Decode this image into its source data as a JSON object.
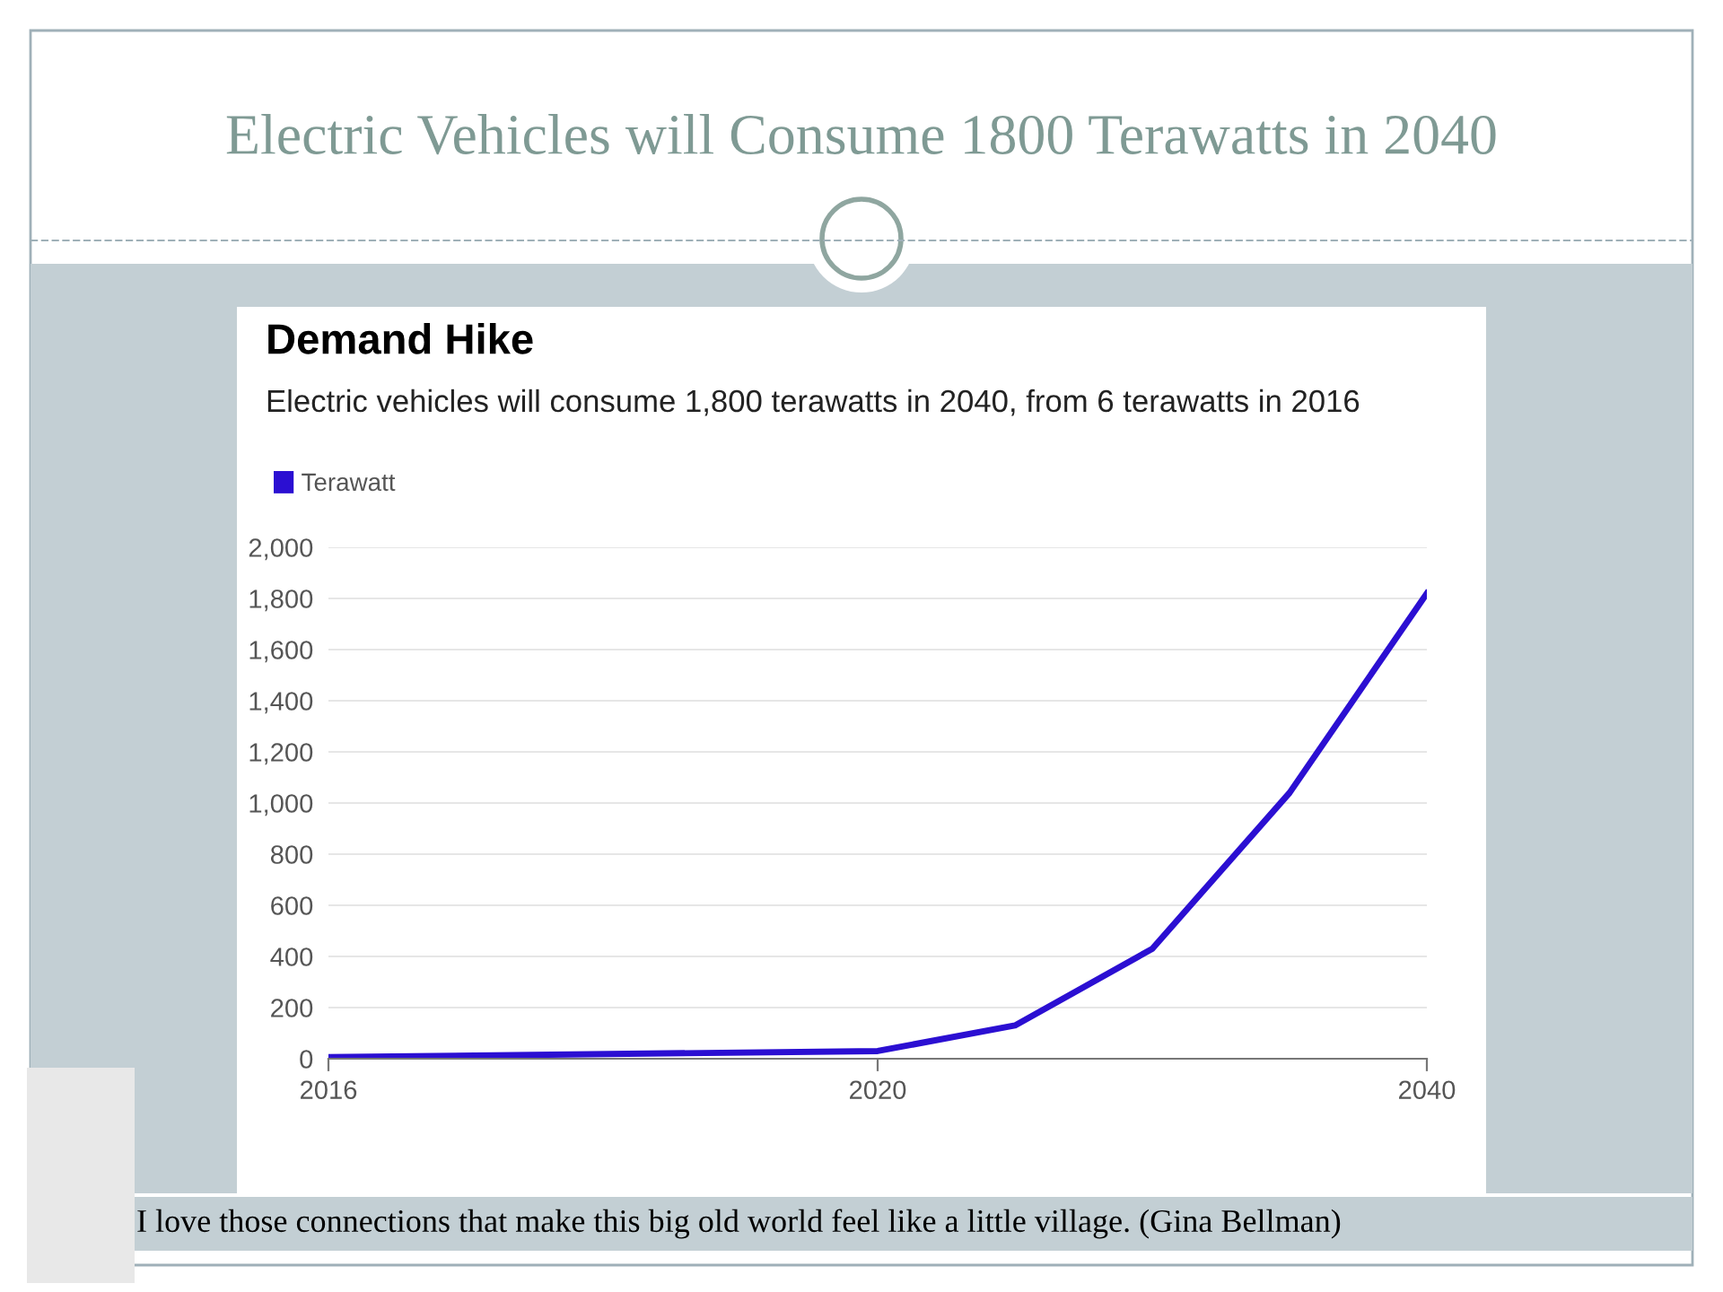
{
  "chart_data": {
    "type": "line",
    "title": "Electric Vehicles will Consume 1800 Terawatts in 2040",
    "subtitle": "Demand Hike",
    "annotations": [
      "Electric vehicles will consume 1,800 terawatts in 2040, from 6 terawatts in 2016",
      "I love those connections that make this big old world feel like a little village. (Gina Bellman)"
    ],
    "categories": [
      "2016",
      null,
      null,
      null,
      "2020",
      null,
      null,
      null,
      "2040"
    ],
    "series": [
      {
        "name": "Terawatt",
        "color": "#2b0fd2",
        "values": [
          6,
          null,
          null,
          null,
          30,
          130,
          430,
          1040,
          1820
        ]
      }
    ],
    "ylim": [
      0,
      2000
    ],
    "yticks": [
      0,
      {
        "value": 200,
        "label": "200"
      },
      {
        "value": 400,
        "label": "400"
      },
      {
        "value": 600,
        "label": "600"
      },
      {
        "value": 800,
        "label": "800"
      },
      {
        "value": 1000,
        "label": "1,000"
      },
      {
        "value": 1200,
        "label": "1,200"
      },
      {
        "value": 1400,
        "label": "1,400"
      },
      {
        "value": 1600,
        "label": "1,600"
      },
      {
        "value": 1800,
        "label": "1,800"
      },
      {
        "value": 2000,
        "label": "2,000"
      }
    ],
    "grid": "y",
    "legend": "top left",
    "marker": "none",
    "line_style": "solid"
  }
}
